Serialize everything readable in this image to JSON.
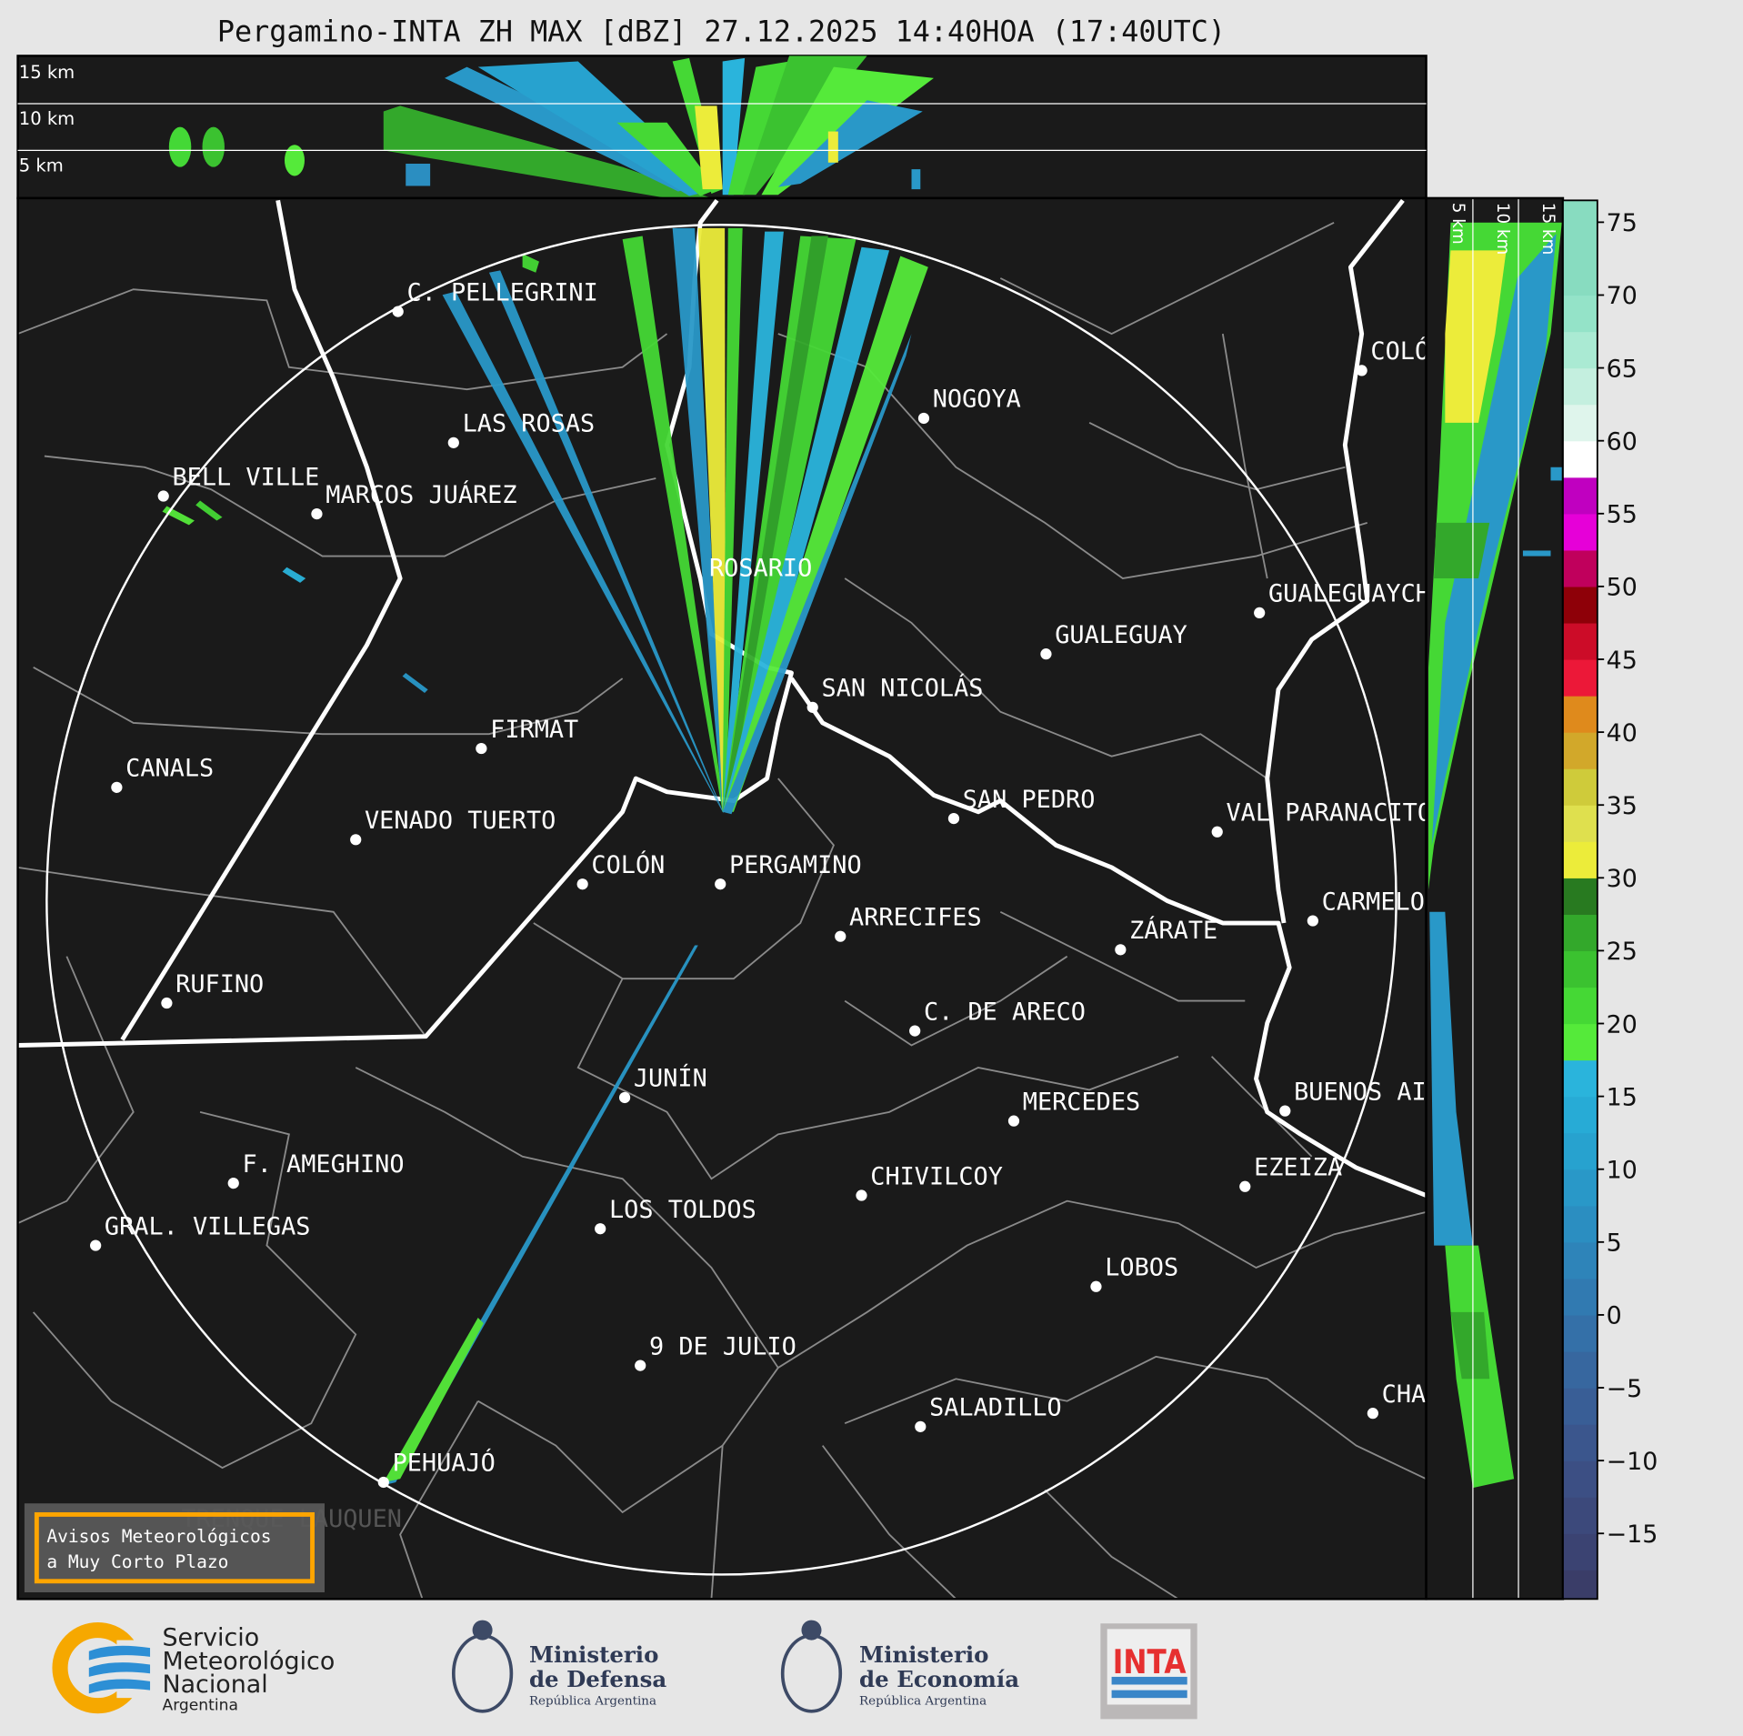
{
  "title": "Pergamino-INTA ZH MAX [dBZ] 27.12.2025 14:40HOA (17:40UTC)",
  "top_panel": {
    "altitude_labels": [
      "15 km",
      "10 km",
      "5 km"
    ]
  },
  "side_panel": {
    "altitude_labels": [
      "5 km",
      "10 km",
      "15 km"
    ]
  },
  "colorbar": {
    "unit": "dBZ",
    "ticks": [
      "75",
      "70",
      "65",
      "60",
      "55",
      "50",
      "45",
      "40",
      "35",
      "30",
      "25",
      "20",
      "15",
      "10",
      "5",
      "0",
      "−5",
      "−10",
      "−15"
    ],
    "range": [
      -19.5,
      76.5
    ],
    "segments_bottom_to_top": [
      {
        "from": -20,
        "color": "#3a3d68"
      },
      {
        "from": -17.5,
        "color": "#3b4372"
      },
      {
        "from": -15,
        "color": "#3c497b"
      },
      {
        "from": -12.5,
        "color": "#3c4f84"
      },
      {
        "from": -10,
        "color": "#3b568d"
      },
      {
        "from": -7.5,
        "color": "#395e96"
      },
      {
        "from": -5,
        "color": "#37679f"
      },
      {
        "from": -2.5,
        "color": "#3470a8"
      },
      {
        "from": 0,
        "color": "#317ab1"
      },
      {
        "from": 2.5,
        "color": "#2e84b9"
      },
      {
        "from": 5,
        "color": "#2b8ec1"
      },
      {
        "from": 7.5,
        "color": "#2998c8"
      },
      {
        "from": 10,
        "color": "#27a2cf"
      },
      {
        "from": 12.5,
        "color": "#27abd6"
      },
      {
        "from": 15,
        "color": "#2ab4dc"
      },
      {
        "from": 17.5,
        "color": "#55ea3a"
      },
      {
        "from": 20,
        "color": "#45d835"
      },
      {
        "from": 22.5,
        "color": "#3bc230"
      },
      {
        "from": 25,
        "color": "#33a82b"
      },
      {
        "from": 27.5,
        "color": "#287a20"
      },
      {
        "from": 30,
        "color": "#ecec3a"
      },
      {
        "from": 32.5,
        "color": "#dfe04e"
      },
      {
        "from": 35,
        "color": "#cfcb3a"
      },
      {
        "from": 37.5,
        "color": "#d2a82a"
      },
      {
        "from": 40,
        "color": "#df8a1c"
      },
      {
        "from": 42.5,
        "color": "#ec1838"
      },
      {
        "from": 45,
        "color": "#cc0c28"
      },
      {
        "from": 47.5,
        "color": "#8e0008"
      },
      {
        "from": 50,
        "color": "#c0005c"
      },
      {
        "from": 52.5,
        "color": "#e600d8"
      },
      {
        "from": 55,
        "color": "#c000c0"
      },
      {
        "from": 57.5,
        "color": "#ffffff"
      },
      {
        "from": 60,
        "color": "#dff5ec"
      },
      {
        "from": 62.5,
        "color": "#c4efdf"
      },
      {
        "from": 65,
        "color": "#aaead3"
      },
      {
        "from": 67.5,
        "color": "#94e3c8"
      },
      {
        "from": 70,
        "color": "#88dcc0"
      }
    ]
  },
  "map": {
    "radar_site": "PERGAMINO",
    "cities": [
      "C. PELLEGRINI",
      "LAS ROSAS",
      "BELL VILLE",
      "MARCOS JUÁREZ",
      "NOGOYA",
      "ROSARIO",
      "GUALEGUAY",
      "GUALEGUAYCHÚ",
      "COLÓN",
      "SAN NICOLÁS",
      "FIRMAT",
      "CANALS",
      "SAN PEDRO",
      "VAL PARANACITO",
      "VENADO TUERTO",
      "COLÓN",
      "PERGAMINO",
      "ARRECIFES",
      "CARMELO",
      "ZÁRATE",
      "RUFINO",
      "C. DE ARECO",
      "JUNÍN",
      "MERCEDES",
      "BUENOS AIRES",
      "F. AMEGHINO",
      "EZEIZA",
      "CHIVILCOY",
      "LOS TOLDOS",
      "GRAL. VILLEGAS",
      "LOBOS",
      "9 DE JULIO",
      "SALADILLO",
      "CHASCOMÚS",
      "PEHUAJÓ",
      "TRENQUE LAUQUEN"
    ]
  },
  "warning_box": {
    "line1": "Avisos Meteorológicos",
    "line2": "a Muy Corto Plazo",
    "border_color": "#ffa500"
  },
  "logos": {
    "smn": {
      "line1": "Servicio",
      "line2": "Meteorológico",
      "line3": "Nacional",
      "line4": "Argentina"
    },
    "defensa": {
      "line1": "Ministerio",
      "line2": "de Defensa",
      "line3": "República Argentina"
    },
    "economia": {
      "line1": "Ministerio",
      "line2": "de Economía",
      "line3": "República Argentina"
    },
    "inta": {
      "text": "INTA"
    }
  }
}
